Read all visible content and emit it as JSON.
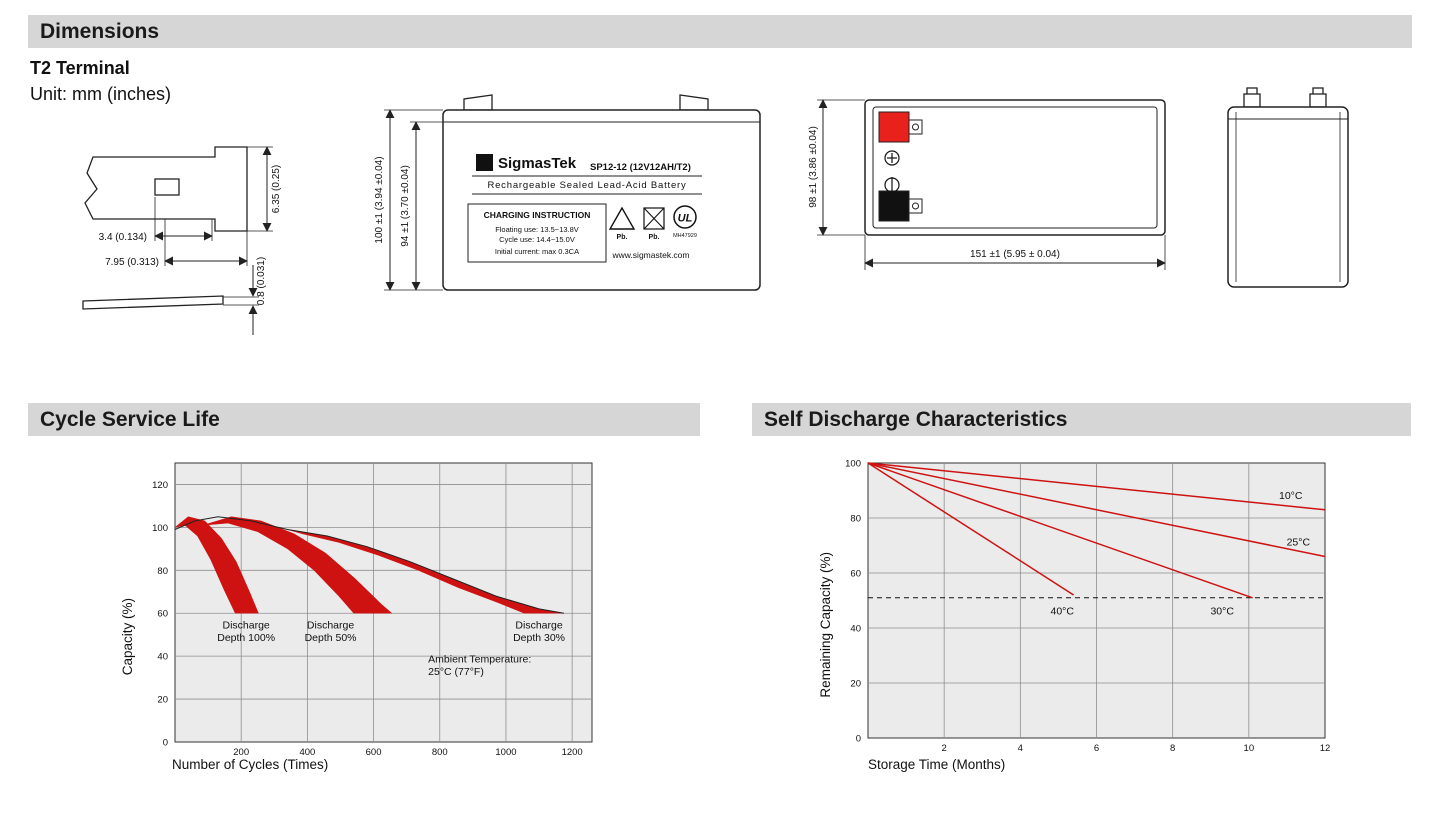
{
  "sections": {
    "dimensions_title": "Dimensions",
    "cycle_life_title": "Cycle Service Life",
    "self_discharge_title": "Self Discharge Characteristics"
  },
  "dimensions": {
    "terminal_type": "T2 Terminal",
    "unit_note": "Unit: mm (inches)",
    "terminal_drawing": {
      "dim_height": "6.35 (0.25)",
      "dim_offset": "3.4 (0.134)",
      "dim_length": "7.95 (0.313)",
      "dim_thickness": "0.8 (0.031)"
    },
    "front_view": {
      "logo_glyph": "Σ",
      "brand": "SigmasTek",
      "model": "SP12-12 (12V12AH/T2)",
      "type_line": "Rechargeable Sealed Lead-Acid Battery",
      "charging_title": "CHARGING INSTRUCTION",
      "charging_line1": "Floating use: 13.5~13.8V",
      "charging_line2": "Cycle use: 14.4~15.0V",
      "charging_line3": "Initial current: max 0.3CA",
      "pb_recycle_label": "Pb.",
      "pb_bin_label": "Pb.",
      "ul_label": "UL",
      "ul_code": "MH47929",
      "website": "www.sigmastek.com",
      "dim_height_total": "100 ±1 (3.94 ±0.04)",
      "dim_height_case": "94 ±1 (3.70 ±0.04)"
    },
    "top_view": {
      "dim_width": "98 ±1 (3.86 ±0.04)",
      "dim_length": "151 ±1 (5.95 ± 0.04)",
      "positive_color": "#e8211d",
      "negative_color": "#111111"
    }
  },
  "chart_data": [
    {
      "id": "cycle-life",
      "type": "area",
      "title": "Cycle Service Life",
      "xlabel": "Number of Cycles (Times)",
      "ylabel": "Capacity (%)",
      "xlim": [
        0,
        1260
      ],
      "ylim": [
        0,
        130
      ],
      "xticks": [
        200,
        400,
        600,
        800,
        1000,
        1200
      ],
      "yticks": [
        0,
        20,
        40,
        60,
        80,
        100,
        120
      ],
      "grid": true,
      "legend_position": "none",
      "plot_bg": "#ebebeb",
      "line_color": "#cd1211",
      "envelope": [
        [
          0,
          99
        ],
        [
          60,
          103
        ],
        [
          130,
          105
        ],
        [
          230,
          103
        ],
        [
          340,
          99
        ],
        [
          460,
          96
        ],
        [
          580,
          91
        ],
        [
          710,
          84
        ],
        [
          840,
          76
        ],
        [
          970,
          68
        ],
        [
          1100,
          62
        ],
        [
          1175,
          60
        ]
      ],
      "bands": [
        {
          "name": "Discharge Depth 100%",
          "polygon": [
            [
              0,
              100
            ],
            [
              40,
              105
            ],
            [
              90,
              103
            ],
            [
              140,
              95
            ],
            [
              185,
              84
            ],
            [
              225,
              70
            ],
            [
              252,
              60
            ],
            [
              182,
              60
            ],
            [
              148,
              71
            ],
            [
              108,
              85
            ],
            [
              68,
              96
            ],
            [
              30,
              101
            ]
          ]
        },
        {
          "name": "Discharge Depth 50%",
          "polygon": [
            [
              85,
              101
            ],
            [
              170,
              105
            ],
            [
              260,
              103
            ],
            [
              360,
              97
            ],
            [
              455,
              88
            ],
            [
              545,
              76
            ],
            [
              625,
              64
            ],
            [
              655,
              60
            ],
            [
              540,
              60
            ],
            [
              495,
              68
            ],
            [
              420,
              80
            ],
            [
              340,
              90
            ],
            [
              250,
              98
            ],
            [
              160,
              102
            ]
          ]
        },
        {
          "name": "Discharge Depth 30%",
          "polygon": [
            [
              340,
              99
            ],
            [
              460,
              96
            ],
            [
              580,
              91
            ],
            [
              710,
              84
            ],
            [
              840,
              76
            ],
            [
              970,
              68
            ],
            [
              1100,
              62
            ],
            [
              1175,
              60
            ],
            [
              1055,
              60
            ],
            [
              975,
              65
            ],
            [
              855,
              72
            ],
            [
              735,
              80
            ],
            [
              615,
              87
            ],
            [
              495,
              93
            ],
            [
              385,
              97
            ]
          ]
        }
      ],
      "annotations": [
        {
          "lines": [
            "Discharge",
            "Depth 100%"
          ],
          "x": 215,
          "y": 53,
          "anchor": "middle"
        },
        {
          "lines": [
            "Discharge",
            "Depth 50%"
          ],
          "x": 470,
          "y": 53,
          "anchor": "middle"
        },
        {
          "lines": [
            "Discharge",
            "Depth 30%"
          ],
          "x": 1100,
          "y": 53,
          "anchor": "middle"
        },
        {
          "lines": [
            "Ambient Temperature:",
            "25°C (77°F)"
          ],
          "x": 765,
          "y": 37,
          "anchor": "start"
        }
      ]
    },
    {
      "id": "self-discharge",
      "type": "line",
      "title": "Self Discharge Characteristics",
      "xlabel": "Storage Time (Months)",
      "ylabel": "Remaining Capacity (%)",
      "xlim": [
        0,
        12
      ],
      "ylim": [
        0,
        100
      ],
      "xticks": [
        2,
        4,
        6,
        8,
        10,
        12
      ],
      "yticks": [
        0,
        20,
        40,
        60,
        80,
        100
      ],
      "grid": true,
      "legend_position": "inline",
      "plot_bg": "#ebebeb",
      "line_color": "#cd1211",
      "series": [
        {
          "name": "10°C",
          "points": [
            [
              0,
              100
            ],
            [
              12,
              83
            ]
          ]
        },
        {
          "name": "25°C",
          "points": [
            [
              0,
              100
            ],
            [
              12,
              66
            ]
          ]
        },
        {
          "name": "30°C",
          "points": [
            [
              0,
              100
            ],
            [
              10.1,
              51
            ]
          ]
        },
        {
          "name": "40°C",
          "points": [
            [
              0,
              100
            ],
            [
              5.4,
              52
            ]
          ]
        }
      ],
      "dashed_line": {
        "y": 51,
        "x0": 0,
        "x1": 12
      },
      "annotations": [
        {
          "lines": [
            "10°C"
          ],
          "x": 11.1,
          "y": 87,
          "anchor": "middle"
        },
        {
          "lines": [
            "25°C"
          ],
          "x": 11.3,
          "y": 70,
          "anchor": "middle"
        },
        {
          "lines": [
            "40°C"
          ],
          "x": 5.1,
          "y": 45,
          "anchor": "middle"
        },
        {
          "lines": [
            "30°C"
          ],
          "x": 9.3,
          "y": 45,
          "anchor": "middle"
        }
      ]
    }
  ]
}
